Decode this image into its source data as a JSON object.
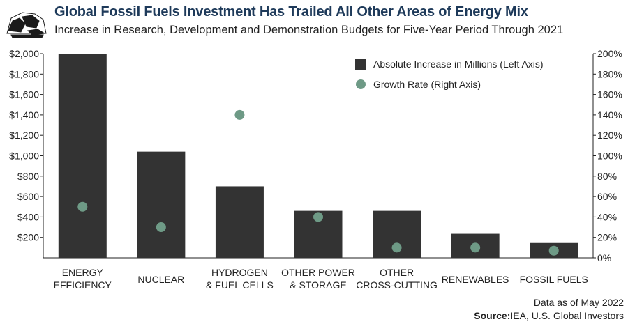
{
  "header": {
    "title": "Global Fossil Fuels Investment Has Trailed All Other Areas of Energy Mix",
    "subtitle": "Increase in Research, Development and Demonstration Budgets for Five-Year Period Through 2021"
  },
  "footer": {
    "date_note": "Data as of May 2022",
    "source_label": "Source:",
    "source_text": "IEA, U.S. Global Investors"
  },
  "colors": {
    "bar": "#333333",
    "dot": "#6e9a86",
    "title": "#1e3a5a",
    "axis": "#222222"
  },
  "chart_data": {
    "type": "bar",
    "title": "Global Fossil Fuels Investment Has Trailed All Other Areas of Energy Mix",
    "categories": [
      [
        "ENERGY",
        "EFFICIENCY"
      ],
      [
        "NUCLEAR"
      ],
      [
        "HYDROGEN",
        "& FUEL CELLS"
      ],
      [
        "OTHER POWER",
        "& STORAGE"
      ],
      [
        "OTHER",
        "CROSS-CUTTING"
      ],
      [
        "RENEWABLES"
      ],
      [
        "FOSSIL FUELS"
      ]
    ],
    "series": [
      {
        "name": "Absolute Increase in Millions (Left Axis)",
        "type": "bar",
        "axis": "left",
        "values": [
          2000,
          1040,
          700,
          460,
          460,
          235,
          145
        ]
      },
      {
        "name": "Growth Rate (Right Axis)",
        "type": "scatter",
        "axis": "right",
        "values": [
          50,
          30,
          140,
          40,
          10,
          10,
          7
        ]
      }
    ],
    "y_left": {
      "min": 0,
      "max": 2000,
      "ticks": [
        200,
        400,
        600,
        800,
        1000,
        1200,
        1400,
        1600,
        1800,
        2000
      ],
      "tick_labels": [
        "$200",
        "$400",
        "$600",
        "$800",
        "$1,000",
        "$1,200",
        "$1,400",
        "$1,600",
        "$1,800",
        "$2,000"
      ]
    },
    "y_right": {
      "min": 0,
      "max": 200,
      "ticks": [
        0,
        20,
        40,
        60,
        80,
        100,
        120,
        140,
        160,
        180,
        200
      ],
      "tick_labels": [
        "0%",
        "20%",
        "40%",
        "60%",
        "80%",
        "100%",
        "120%",
        "140%",
        "160%",
        "180%",
        "200%"
      ]
    },
    "legend": {
      "position": "top-right",
      "entries": [
        "Absolute Increase in Millions (Left Axis)",
        "Growth Rate (Right Axis)"
      ]
    },
    "grid": false
  }
}
